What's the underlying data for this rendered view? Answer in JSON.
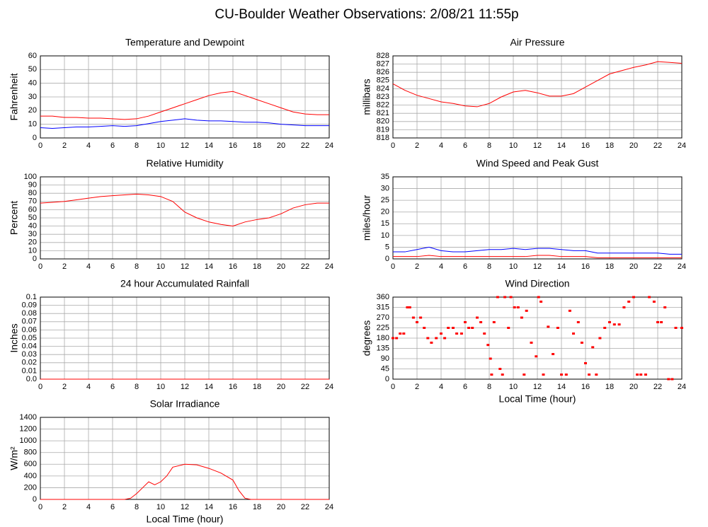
{
  "title": "CU-Boulder Weather Observations: 2/08/21 11:55p",
  "chart_data": [
    {
      "type": "line",
      "title": "Temperature and Dewpoint",
      "ylabel": "Fahrenheit",
      "x": [
        0,
        1,
        2,
        3,
        4,
        5,
        6,
        7,
        8,
        9,
        10,
        11,
        12,
        13,
        14,
        15,
        16,
        17,
        18,
        19,
        20,
        21,
        22,
        23,
        24
      ],
      "series": [
        {
          "color": "#ff0000",
          "values": [
            16,
            16,
            15,
            15,
            14.5,
            14.5,
            14,
            13.5,
            14,
            16,
            19,
            22,
            25,
            28,
            31,
            33,
            34,
            31,
            28,
            25,
            22,
            19,
            17.5,
            17,
            17
          ]
        },
        {
          "color": "#0000ff",
          "values": [
            7.5,
            7,
            7.5,
            8,
            8,
            8.5,
            9,
            8.5,
            9,
            10.5,
            12,
            13,
            14,
            13,
            12.5,
            12.5,
            12,
            11.5,
            11.5,
            11,
            10,
            9.5,
            9,
            9,
            9
          ]
        }
      ],
      "xlim": [
        0,
        24
      ],
      "xticks": [
        0,
        2,
        4,
        6,
        8,
        10,
        12,
        14,
        16,
        18,
        20,
        22,
        24
      ],
      "ylim": [
        0,
        60
      ],
      "yticks": [
        0,
        10,
        20,
        30,
        40,
        50,
        60
      ]
    },
    {
      "type": "line",
      "title": "Air Pressure",
      "ylabel": "millibars",
      "x": [
        0,
        1,
        2,
        3,
        4,
        5,
        6,
        7,
        8,
        9,
        10,
        11,
        12,
        13,
        14,
        15,
        16,
        17,
        18,
        19,
        20,
        21,
        22,
        23,
        24
      ],
      "series": [
        {
          "color": "#ff0000",
          "values": [
            824.6,
            823.8,
            823.2,
            822.8,
            822.4,
            822.2,
            821.9,
            821.8,
            822.2,
            823,
            823.6,
            823.8,
            823.5,
            823.1,
            823.1,
            823.4,
            824.2,
            825,
            825.8,
            826.2,
            826.6,
            826.9,
            827.3,
            827.2,
            827.1
          ]
        }
      ],
      "xlim": [
        0,
        24
      ],
      "xticks": [
        0,
        2,
        4,
        6,
        8,
        10,
        12,
        14,
        16,
        18,
        20,
        22,
        24
      ],
      "ylim": [
        818,
        828
      ],
      "yticks": [
        818,
        819,
        820,
        821,
        822,
        823,
        824,
        825,
        826,
        827,
        828
      ]
    },
    {
      "type": "line",
      "title": "Relative Humidity",
      "ylabel": "Percent",
      "x": [
        0,
        1,
        2,
        3,
        4,
        5,
        6,
        7,
        8,
        9,
        10,
        11,
        12,
        13,
        14,
        15,
        16,
        17,
        18,
        19,
        20,
        21,
        22,
        23,
        24
      ],
      "series": [
        {
          "color": "#ff0000",
          "values": [
            68,
            69,
            70,
            72,
            74,
            76,
            77,
            78,
            79,
            78,
            76,
            70,
            57,
            50,
            45,
            42,
            40,
            45,
            48,
            50,
            55,
            62,
            66,
            68,
            68
          ]
        }
      ],
      "xlim": [
        0,
        24
      ],
      "xticks": [
        0,
        2,
        4,
        6,
        8,
        10,
        12,
        14,
        16,
        18,
        20,
        22,
        24
      ],
      "ylim": [
        0,
        100
      ],
      "yticks": [
        0,
        10,
        20,
        30,
        40,
        50,
        60,
        70,
        80,
        90,
        100
      ]
    },
    {
      "type": "line",
      "title": "Wind Speed and Peak Gust",
      "ylabel": "miles/hour",
      "x": [
        0,
        1,
        2,
        3,
        4,
        5,
        6,
        7,
        8,
        9,
        10,
        11,
        12,
        13,
        14,
        15,
        16,
        17,
        18,
        19,
        20,
        21,
        22,
        23,
        24
      ],
      "series": [
        {
          "color": "#0000ff",
          "values": [
            3,
            3,
            4,
            5,
            3.5,
            3,
            3,
            3.5,
            4,
            4,
            4.5,
            4,
            4.5,
            4.5,
            4,
            3.5,
            3.5,
            2.5,
            2.5,
            2.5,
            2.5,
            2.5,
            2.5,
            2,
            2
          ]
        },
        {
          "color": "#ff0000",
          "values": [
            1,
            1,
            1,
            1.5,
            1,
            1,
            1,
            1,
            1,
            1,
            1,
            1,
            1.5,
            1.5,
            1,
            1,
            1,
            0.5,
            0.5,
            0.5,
            0.5,
            0.5,
            0.5,
            0.5,
            0.5
          ]
        }
      ],
      "xlim": [
        0,
        24
      ],
      "xticks": [
        0,
        2,
        4,
        6,
        8,
        10,
        12,
        14,
        16,
        18,
        20,
        22,
        24
      ],
      "ylim": [
        0,
        35
      ],
      "yticks": [
        0,
        5,
        10,
        15,
        20,
        25,
        30,
        35
      ]
    },
    {
      "type": "line",
      "title": "24 hour Accumulated Rainfall",
      "ylabel": "Inches",
      "x": [
        0,
        24
      ],
      "series": [
        {
          "color": "#ff0000",
          "values": [
            0,
            0
          ]
        }
      ],
      "xlim": [
        0,
        24
      ],
      "xticks": [
        0,
        2,
        4,
        6,
        8,
        10,
        12,
        14,
        16,
        18,
        20,
        22,
        24
      ],
      "ylim": [
        0,
        0.1
      ],
      "yticks": [
        {
          "value": 0,
          "label": "0.0"
        },
        0.01,
        0.02,
        0.03,
        0.04,
        0.05,
        0.06,
        0.07,
        0.08,
        0.09,
        0.1
      ]
    },
    {
      "type": "scatter",
      "title": "Wind Direction",
      "ylabel": "degrees",
      "xlabel": "Local Time (hour)",
      "x": [
        0,
        0.3,
        0.6,
        0.9,
        1.2,
        1.4,
        1.7,
        2,
        2.3,
        2.6,
        2.9,
        3.2,
        3.6,
        4,
        4.3,
        4.6,
        5,
        5.3,
        5.7,
        6,
        6.3,
        6.6,
        7,
        7.3,
        7.6,
        7.9,
        8.1,
        8.2,
        8.4,
        8.7,
        8.9,
        9.1,
        9.3,
        9.6,
        9.8,
        10.1,
        10.4,
        10.7,
        10.9,
        11.1,
        11.5,
        11.9,
        12.1,
        12.3,
        12.5,
        12.9,
        13.3,
        13.7,
        14,
        14.4,
        14.7,
        15,
        15.4,
        15.7,
        16,
        16.3,
        16.6,
        16.9,
        17.2,
        17.6,
        18,
        18.4,
        18.8,
        19.2,
        19.6,
        20,
        20.3,
        20.6,
        21,
        21.3,
        21.7,
        22,
        22.3,
        22.6,
        22.9,
        23.2,
        23.5,
        24
      ],
      "series": [
        {
          "color": "#ff0000",
          "values": [
            180,
            180,
            200,
            200,
            315,
            315,
            270,
            250,
            270,
            225,
            180,
            160,
            180,
            200,
            180,
            225,
            225,
            200,
            200,
            250,
            225,
            225,
            270,
            250,
            200,
            150,
            90,
            20,
            250,
            360,
            45,
            20,
            360,
            225,
            360,
            315,
            315,
            270,
            20,
            300,
            160,
            100,
            360,
            340,
            20,
            230,
            110,
            225,
            20,
            20,
            300,
            200,
            250,
            160,
            70,
            20,
            140,
            20,
            180,
            225,
            250,
            240,
            240,
            315,
            340,
            360,
            20,
            20,
            20,
            360,
            340,
            250,
            250,
            315,
            0,
            0,
            225,
            225
          ]
        }
      ],
      "xlim": [
        0,
        24
      ],
      "xticks": [
        0,
        2,
        4,
        6,
        8,
        10,
        12,
        14,
        16,
        18,
        20,
        22,
        24
      ],
      "ylim": [
        0,
        360
      ],
      "yticks": [
        0,
        45,
        90,
        135,
        180,
        225,
        270,
        315,
        360
      ]
    },
    {
      "type": "line",
      "title": "Solar Irradiance",
      "ylabel": "W/m²",
      "xlabel": "Local Time (hour)",
      "x": [
        0,
        2,
        4,
        6,
        7,
        7.5,
        8,
        8.5,
        9,
        9.5,
        10,
        10.5,
        11,
        12,
        13,
        14,
        15,
        16,
        16.5,
        17,
        17.5,
        18,
        20,
        22,
        24
      ],
      "series": [
        {
          "color": "#ff0000",
          "values": [
            0,
            0,
            0,
            0,
            0,
            20,
            100,
            200,
            300,
            250,
            300,
            400,
            550,
            600,
            590,
            530,
            450,
            330,
            150,
            20,
            0,
            0,
            0,
            0,
            0
          ]
        }
      ],
      "xlim": [
        0,
        24
      ],
      "xticks": [
        0,
        2,
        4,
        6,
        8,
        10,
        12,
        14,
        16,
        18,
        20,
        22,
        24
      ],
      "ylim": [
        0,
        1400
      ],
      "yticks": [
        0,
        200,
        400,
        600,
        800,
        1000,
        1200,
        1400
      ]
    }
  ]
}
